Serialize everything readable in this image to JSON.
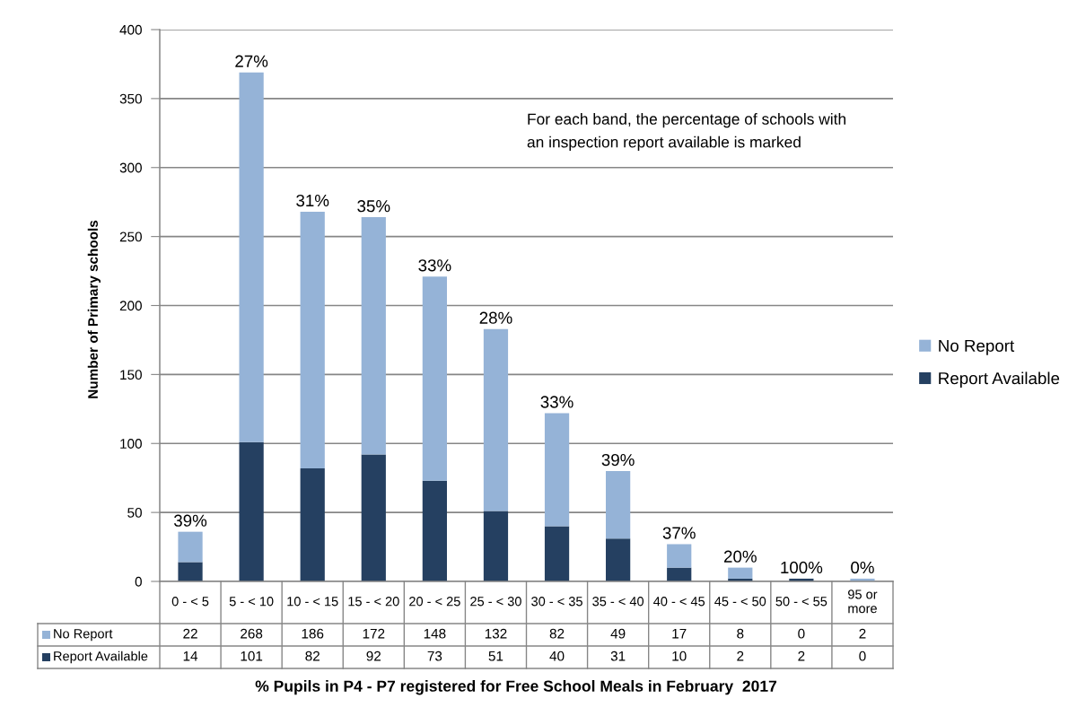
{
  "chart_data": {
    "type": "bar",
    "stacked": true,
    "xlabel": "% Pupils in P4 - P7 registered for Free School Meals in February  2017",
    "ylabel": "Number of Primary schools",
    "categories": [
      "0 - < 5",
      "5 - < 10",
      "10 - < 15",
      "15 - < 20",
      "20 - < 25",
      "25 - < 30",
      "30 - < 35",
      "35 - < 40",
      "40 - < 45",
      "45 - < 50",
      "50 - < 55",
      "95 or more"
    ],
    "series": [
      {
        "name": "Report Available",
        "color": "#254061",
        "values": [
          14,
          101,
          82,
          92,
          73,
          51,
          40,
          31,
          10,
          2,
          2,
          0
        ]
      },
      {
        "name": "No Report",
        "color": "#95b3d7",
        "values": [
          22,
          268,
          186,
          172,
          148,
          132,
          82,
          49,
          17,
          8,
          0,
          2
        ]
      }
    ],
    "ylim": [
      0,
      400
    ],
    "yticks": [
      0,
      50,
      100,
      150,
      200,
      250,
      300,
      350,
      400
    ],
    "grid": "y",
    "legend": "right",
    "data_labels": true,
    "annotations": [
      "For each band, the percentage of schools with an inspection report available is marked",
      {
        "text": "39%",
        "x": "0 - < 5",
        "y": 36
      },
      {
        "text": "27%",
        "x": "5 - < 10",
        "y": 369
      },
      {
        "text": "31%",
        "x": "10 - < 15",
        "y": 268
      },
      {
        "text": "35%",
        "x": "15 - < 20",
        "y": 264
      },
      {
        "text": "33%",
        "x": "20 - < 25",
        "y": 221
      },
      {
        "text": "28%",
        "x": "25 - < 30",
        "y": 183
      },
      {
        "text": "33%",
        "x": "30 - < 35",
        "y": 122
      },
      {
        "text": "39%",
        "x": "35 - < 40",
        "y": 80
      },
      {
        "text": "37%",
        "x": "40 - < 45",
        "y": 27
      },
      {
        "text": "20%",
        "x": "45 - < 50",
        "y": 10
      },
      {
        "text": "100%",
        "x": "50 - < 55",
        "y": 2
      },
      {
        "text": "0%",
        "x": "95 or more",
        "y": 2
      }
    ]
  }
}
